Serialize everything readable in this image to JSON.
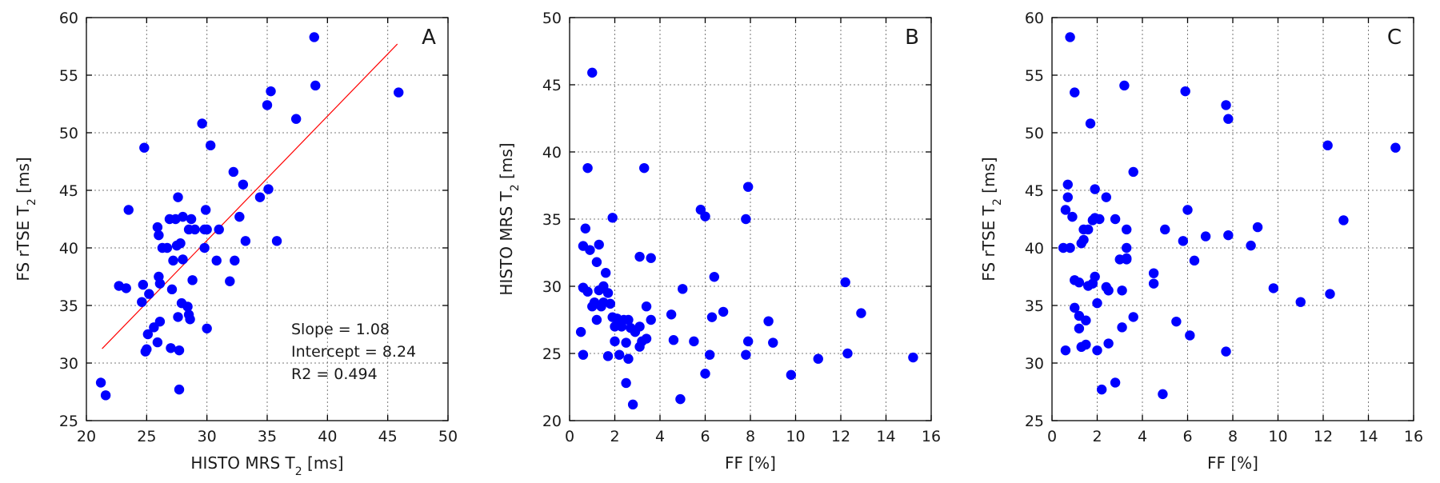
{
  "colors": {
    "points": "#0000ff",
    "fit": "#ff0000",
    "grid": "#7a7a7a"
  },
  "chart_data": [
    {
      "type": "scatter",
      "panel": "A",
      "xlabel": "HISTO MRS T",
      "xlabel_sub": "2",
      "xlabel_suffix": " [ms]",
      "ylabel": "FS rTSE T",
      "ylabel_sub": "2",
      "ylabel_suffix": " [ms]",
      "xlim": [
        20,
        50
      ],
      "ylim": [
        25,
        60
      ],
      "xticks": [
        20,
        25,
        30,
        35,
        40,
        45,
        50
      ],
      "yticks": [
        25,
        30,
        35,
        40,
        45,
        50,
        55,
        60
      ],
      "grid": true,
      "fit_line": {
        "slope": 1.08,
        "intercept": 8.24,
        "x_range": [
          21.3,
          45.8
        ]
      },
      "stats": [
        "Slope = 1.08",
        "Intercept = 8.24",
        "R2 = 0.494"
      ],
      "points": [
        [
          21.2,
          28.3
        ],
        [
          21.6,
          27.2
        ],
        [
          22.7,
          36.7
        ],
        [
          23.3,
          36.5
        ],
        [
          23.5,
          43.3
        ],
        [
          24.6,
          35.3
        ],
        [
          24.7,
          36.8
        ],
        [
          24.8,
          48.7
        ],
        [
          24.9,
          31.0
        ],
        [
          25.0,
          31.2
        ],
        [
          25.1,
          32.5
        ],
        [
          25.2,
          36.0
        ],
        [
          25.6,
          33.1
        ],
        [
          25.9,
          31.8
        ],
        [
          25.9,
          41.8
        ],
        [
          26.0,
          41.1
        ],
        [
          26.0,
          37.5
        ],
        [
          26.1,
          36.9
        ],
        [
          26.1,
          33.6
        ],
        [
          26.3,
          40.0
        ],
        [
          26.7,
          40.0
        ],
        [
          26.9,
          42.5
        ],
        [
          27.0,
          31.3
        ],
        [
          27.1,
          36.4
        ],
        [
          27.2,
          38.9
        ],
        [
          27.4,
          42.5
        ],
        [
          27.5,
          40.2
        ],
        [
          27.6,
          34.0
        ],
        [
          27.6,
          44.4
        ],
        [
          27.7,
          27.7
        ],
        [
          27.7,
          31.1
        ],
        [
          27.8,
          40.4
        ],
        [
          27.9,
          35.2
        ],
        [
          28.0,
          39.0
        ],
        [
          28.0,
          42.7
        ],
        [
          28.4,
          34.9
        ],
        [
          28.5,
          41.6
        ],
        [
          28.5,
          34.2
        ],
        [
          28.6,
          33.8
        ],
        [
          28.7,
          42.5
        ],
        [
          28.8,
          37.2
        ],
        [
          29.0,
          41.6
        ],
        [
          29.6,
          50.8
        ],
        [
          29.8,
          40.0
        ],
        [
          29.8,
          41.6
        ],
        [
          29.9,
          43.3
        ],
        [
          30.0,
          33.0
        ],
        [
          30.0,
          41.6
        ],
        [
          30.3,
          48.9
        ],
        [
          30.8,
          38.9
        ],
        [
          31.0,
          41.6
        ],
        [
          31.9,
          37.1
        ],
        [
          32.2,
          46.6
        ],
        [
          32.3,
          38.9
        ],
        [
          32.7,
          42.7
        ],
        [
          33.0,
          45.5
        ],
        [
          33.2,
          40.6
        ],
        [
          34.4,
          44.4
        ],
        [
          35.0,
          52.4
        ],
        [
          35.1,
          45.1
        ],
        [
          35.3,
          53.6
        ],
        [
          35.8,
          40.6
        ],
        [
          37.4,
          51.2
        ],
        [
          38.9,
          58.3
        ],
        [
          39.0,
          54.1
        ],
        [
          45.9,
          53.5
        ]
      ]
    },
    {
      "type": "scatter",
      "panel": "B",
      "xlabel": "FF [%]",
      "ylabel": "HISTO MRS T",
      "ylabel_sub": "2",
      "ylabel_suffix": " [ms]",
      "xlim": [
        0,
        16
      ],
      "ylim": [
        20,
        50
      ],
      "xticks": [
        0,
        2,
        4,
        6,
        8,
        10,
        12,
        14,
        16
      ],
      "yticks": [
        20,
        25,
        30,
        35,
        40,
        45,
        50
      ],
      "grid": true,
      "points": [
        [
          0.5,
          26.6
        ],
        [
          0.6,
          29.9
        ],
        [
          0.6,
          24.9
        ],
        [
          0.6,
          33.0
        ],
        [
          0.7,
          34.3
        ],
        [
          0.8,
          29.6
        ],
        [
          0.8,
          38.8
        ],
        [
          0.9,
          32.7
        ],
        [
          1.0,
          45.9
        ],
        [
          1.0,
          28.5
        ],
        [
          1.1,
          28.8
        ],
        [
          1.2,
          31.8
        ],
        [
          1.2,
          27.5
        ],
        [
          1.3,
          29.7
        ],
        [
          1.3,
          33.1
        ],
        [
          1.4,
          28.5
        ],
        [
          1.5,
          28.8
        ],
        [
          1.5,
          30.0
        ],
        [
          1.6,
          31.0
        ],
        [
          1.7,
          24.8
        ],
        [
          1.7,
          29.5
        ],
        [
          1.8,
          28.7
        ],
        [
          1.9,
          35.1
        ],
        [
          1.9,
          27.7
        ],
        [
          2.0,
          25.9
        ],
        [
          2.0,
          27.0
        ],
        [
          2.1,
          27.6
        ],
        [
          2.2,
          24.9
        ],
        [
          2.3,
          27.0
        ],
        [
          2.4,
          27.5
        ],
        [
          2.5,
          22.8
        ],
        [
          2.5,
          25.8
        ],
        [
          2.6,
          24.6
        ],
        [
          2.6,
          27.5
        ],
        [
          2.7,
          26.9
        ],
        [
          2.8,
          21.2
        ],
        [
          2.9,
          26.6
        ],
        [
          3.1,
          32.2
        ],
        [
          3.1,
          25.5
        ],
        [
          3.1,
          27.0
        ],
        [
          3.2,
          25.9
        ],
        [
          3.3,
          38.8
        ],
        [
          3.4,
          28.5
        ],
        [
          3.4,
          26.1
        ],
        [
          3.6,
          32.1
        ],
        [
          3.6,
          27.5
        ],
        [
          4.5,
          27.9
        ],
        [
          4.6,
          26.0
        ],
        [
          4.9,
          21.6
        ],
        [
          5.0,
          29.8
        ],
        [
          5.5,
          25.9
        ],
        [
          5.8,
          35.7
        ],
        [
          6.0,
          23.5
        ],
        [
          6.0,
          35.2
        ],
        [
          6.2,
          24.9
        ],
        [
          6.3,
          27.7
        ],
        [
          6.4,
          30.7
        ],
        [
          6.8,
          28.1
        ],
        [
          7.8,
          35.0
        ],
        [
          7.8,
          24.9
        ],
        [
          7.9,
          37.4
        ],
        [
          7.9,
          25.9
        ],
        [
          8.8,
          27.4
        ],
        [
          9.0,
          25.8
        ],
        [
          9.8,
          23.4
        ],
        [
          11.0,
          24.6
        ],
        [
          12.2,
          30.3
        ],
        [
          12.3,
          25.0
        ],
        [
          12.9,
          28.0
        ],
        [
          15.2,
          24.7
        ]
      ]
    },
    {
      "type": "scatter",
      "panel": "C",
      "xlabel": "FF [%]",
      "ylabel": "FS rTSE T",
      "ylabel_sub": "2",
      "ylabel_suffix": " [ms]",
      "xlim": [
        0,
        16
      ],
      "ylim": [
        25,
        60
      ],
      "xticks": [
        0,
        2,
        4,
        6,
        8,
        10,
        12,
        14,
        16
      ],
      "yticks": [
        25,
        30,
        35,
        40,
        45,
        50,
        55,
        60
      ],
      "grid": true,
      "points": [
        [
          0.5,
          40.0
        ],
        [
          0.6,
          43.3
        ],
        [
          0.6,
          31.1
        ],
        [
          0.7,
          45.5
        ],
        [
          0.7,
          44.4
        ],
        [
          0.8,
          58.3
        ],
        [
          0.8,
          40.0
        ],
        [
          0.9,
          42.7
        ],
        [
          1.0,
          53.5
        ],
        [
          1.0,
          37.2
        ],
        [
          1.0,
          34.8
        ],
        [
          1.2,
          37.0
        ],
        [
          1.2,
          34.1
        ],
        [
          1.2,
          33.0
        ],
        [
          1.3,
          40.4
        ],
        [
          1.3,
          31.4
        ],
        [
          1.4,
          41.6
        ],
        [
          1.4,
          40.7
        ],
        [
          1.5,
          33.7
        ],
        [
          1.5,
          31.6
        ],
        [
          1.6,
          36.7
        ],
        [
          1.6,
          41.6
        ],
        [
          1.7,
          50.8
        ],
        [
          1.8,
          42.4
        ],
        [
          1.8,
          36.9
        ],
        [
          1.9,
          45.1
        ],
        [
          1.9,
          42.6
        ],
        [
          1.9,
          37.5
        ],
        [
          2.0,
          35.2
        ],
        [
          2.0,
          31.1
        ],
        [
          2.1,
          42.5
        ],
        [
          2.2,
          27.7
        ],
        [
          2.4,
          44.4
        ],
        [
          2.4,
          36.6
        ],
        [
          2.5,
          31.7
        ],
        [
          2.5,
          36.3
        ],
        [
          2.8,
          28.3
        ],
        [
          2.8,
          42.5
        ],
        [
          3.0,
          39.0
        ],
        [
          3.1,
          36.3
        ],
        [
          3.1,
          33.1
        ],
        [
          3.2,
          54.1
        ],
        [
          3.3,
          39.1
        ],
        [
          3.3,
          41.6
        ],
        [
          3.3,
          40.0
        ],
        [
          3.3,
          39.0
        ],
        [
          3.6,
          34.0
        ],
        [
          3.6,
          46.6
        ],
        [
          4.5,
          37.8
        ],
        [
          4.5,
          36.9
        ],
        [
          4.9,
          27.3
        ],
        [
          5.0,
          41.6
        ],
        [
          5.5,
          33.6
        ],
        [
          5.8,
          40.6
        ],
        [
          5.9,
          53.6
        ],
        [
          6.0,
          43.3
        ],
        [
          6.1,
          32.4
        ],
        [
          6.3,
          38.9
        ],
        [
          6.8,
          41.0
        ],
        [
          7.7,
          31.0
        ],
        [
          7.7,
          52.4
        ],
        [
          7.8,
          51.2
        ],
        [
          7.8,
          41.1
        ],
        [
          8.8,
          40.2
        ],
        [
          9.1,
          41.8
        ],
        [
          9.8,
          36.5
        ],
        [
          11.0,
          35.3
        ],
        [
          12.2,
          48.9
        ],
        [
          12.3,
          36.0
        ],
        [
          12.9,
          42.4
        ],
        [
          15.2,
          48.7
        ]
      ]
    }
  ]
}
